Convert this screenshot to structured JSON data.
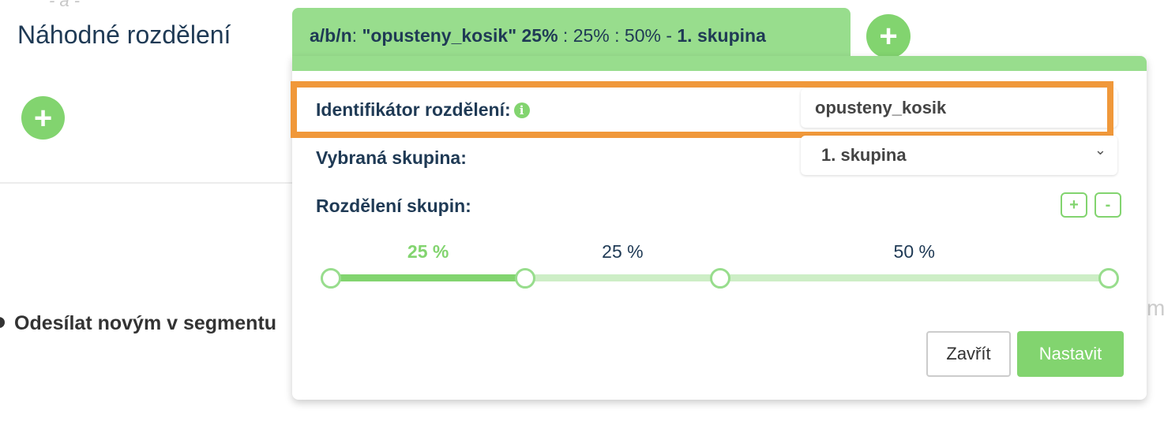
{
  "page": {
    "faint_label": "- a -",
    "title": "Náhodné rozdělení",
    "send_text": "Odesílat novým v segmentu",
    "right_fragment": "m"
  },
  "tab": {
    "prefix": "a/b/n",
    "id_part": "\"opusteny_kosik\" 25%",
    "rest": " : 25% : 50% - ",
    "group": "1. skupina"
  },
  "panel": {
    "id_label": "Identifikátor rozdělení:",
    "id_value": "opusteny_kosik",
    "group_label": "Vybraná skupina:",
    "group_value": "1. skupina",
    "split_label": "Rozdělení skupin:",
    "add_label": "+",
    "remove_label": "-",
    "splits": [
      {
        "label": "25 %",
        "value": 25,
        "active": true
      },
      {
        "label": "25 %",
        "value": 25,
        "active": false
      },
      {
        "label": "50 %",
        "value": 50,
        "active": false
      }
    ],
    "close_label": "Zavřít",
    "submit_label": "Nastavit"
  },
  "colors": {
    "accent": "#82d46f",
    "tab": "#98dd8d",
    "highlight": "#f0983a",
    "text": "#1f3a55"
  }
}
